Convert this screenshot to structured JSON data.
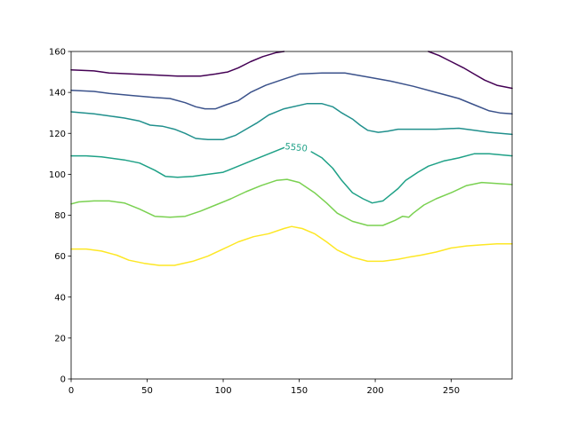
{
  "chart_data": {
    "type": "contour",
    "title": "",
    "xlabel": "",
    "ylabel": "",
    "xlim": [
      0,
      290
    ],
    "ylim": [
      0,
      160
    ],
    "xticks": [
      0,
      50,
      100,
      150,
      200,
      250
    ],
    "yticks": [
      0,
      20,
      40,
      60,
      80,
      100,
      120,
      140,
      160
    ],
    "grid": false,
    "legend": "none",
    "clabels": [
      {
        "text": "5550",
        "x": 148,
        "y": 113,
        "color": "#1fa187"
      }
    ],
    "levels": [
      {
        "color": "#440154",
        "points": [
          [
            0,
            151
          ],
          [
            15,
            150.5
          ],
          [
            25,
            149.5
          ],
          [
            40,
            149
          ],
          [
            55,
            148.5
          ],
          [
            70,
            148
          ],
          [
            85,
            148
          ],
          [
            95,
            149
          ],
          [
            103,
            150
          ],
          [
            110,
            152
          ],
          [
            118,
            155
          ],
          [
            126,
            157.5
          ],
          [
            135,
            159.5
          ],
          [
            140,
            160
          ]
        ]
      },
      {
        "color": "#440154",
        "points": [
          [
            235,
            160
          ],
          [
            242,
            158
          ],
          [
            250,
            155
          ],
          [
            258,
            152
          ],
          [
            265,
            149
          ],
          [
            272,
            146
          ],
          [
            280,
            143.5
          ],
          [
            290,
            142
          ]
        ]
      },
      {
        "color": "#3b528b",
        "points": [
          [
            0,
            141
          ],
          [
            15,
            140.5
          ],
          [
            25,
            139.5
          ],
          [
            40,
            138.5
          ],
          [
            55,
            137.5
          ],
          [
            65,
            137
          ],
          [
            75,
            135
          ],
          [
            82,
            133
          ],
          [
            88,
            132
          ],
          [
            95,
            132
          ],
          [
            102,
            134
          ],
          [
            110,
            136
          ],
          [
            118,
            140
          ],
          [
            128,
            143.5
          ],
          [
            140,
            146.5
          ],
          [
            150,
            149
          ],
          [
            165,
            149.5
          ],
          [
            180,
            149.5
          ],
          [
            195,
            147.5
          ],
          [
            210,
            145.5
          ],
          [
            225,
            143
          ],
          [
            240,
            140
          ],
          [
            255,
            137
          ],
          [
            265,
            134
          ],
          [
            275,
            131
          ],
          [
            282,
            130
          ],
          [
            290,
            129.5
          ]
        ]
      },
      {
        "color": "#21908d",
        "points": [
          [
            0,
            130.5
          ],
          [
            15,
            129.5
          ],
          [
            25,
            128.5
          ],
          [
            35,
            127.5
          ],
          [
            45,
            126
          ],
          [
            52,
            124
          ],
          [
            60,
            123.5
          ],
          [
            68,
            122
          ],
          [
            75,
            120
          ],
          [
            82,
            117.5
          ],
          [
            90,
            117
          ],
          [
            100,
            117
          ],
          [
            108,
            119
          ],
          [
            115,
            122
          ],
          [
            122,
            125
          ],
          [
            130,
            129
          ],
          [
            140,
            132
          ],
          [
            155,
            134.5
          ],
          [
            165,
            134.5
          ],
          [
            172,
            133
          ],
          [
            178,
            130
          ],
          [
            185,
            127
          ],
          [
            190,
            124
          ],
          [
            195,
            121.5
          ],
          [
            202,
            120.5
          ],
          [
            208,
            121
          ],
          [
            215,
            122
          ],
          [
            225,
            122
          ],
          [
            240,
            122
          ],
          [
            255,
            122.5
          ],
          [
            265,
            121.5
          ],
          [
            275,
            120.5
          ],
          [
            290,
            119.5
          ]
        ]
      },
      {
        "color": "#1fa187",
        "points": [
          [
            0,
            109
          ],
          [
            10,
            109
          ],
          [
            20,
            108.5
          ],
          [
            35,
            107
          ],
          [
            45,
            105.5
          ],
          [
            55,
            102
          ],
          [
            62,
            99
          ],
          [
            70,
            98.5
          ],
          [
            80,
            99
          ],
          [
            90,
            100
          ],
          [
            100,
            101
          ],
          [
            110,
            104
          ],
          [
            120,
            107
          ],
          [
            130,
            110
          ],
          [
            140,
            113
          ]
        ]
      },
      {
        "color": "#1fa187",
        "points": [
          [
            158,
            111
          ],
          [
            165,
            108
          ],
          [
            172,
            103
          ],
          [
            178,
            97
          ],
          [
            185,
            91
          ],
          [
            192,
            88
          ],
          [
            198,
            86
          ],
          [
            205,
            87
          ],
          [
            210,
            90
          ],
          [
            215,
            93
          ],
          [
            220,
            97
          ],
          [
            228,
            101
          ],
          [
            235,
            104
          ],
          [
            245,
            106.5
          ],
          [
            255,
            108
          ],
          [
            265,
            110
          ],
          [
            275,
            110
          ],
          [
            290,
            109
          ]
        ]
      },
      {
        "color": "#7ad151",
        "points": [
          [
            0,
            85.5
          ],
          [
            5,
            86.5
          ],
          [
            15,
            87
          ],
          [
            25,
            87
          ],
          [
            35,
            86
          ],
          [
            45,
            83
          ],
          [
            55,
            79.5
          ],
          [
            65,
            79
          ],
          [
            75,
            79.5
          ],
          [
            85,
            82
          ],
          [
            95,
            85
          ],
          [
            105,
            88
          ],
          [
            115,
            91.5
          ],
          [
            125,
            94.5
          ],
          [
            135,
            97
          ],
          [
            142,
            97.5
          ],
          [
            150,
            96
          ],
          [
            160,
            91
          ],
          [
            168,
            86
          ],
          [
            175,
            81
          ],
          [
            185,
            77
          ],
          [
            195,
            75
          ],
          [
            205,
            75
          ],
          [
            213,
            77.5
          ],
          [
            218,
            79.5
          ],
          [
            222,
            79
          ],
          [
            225,
            81
          ],
          [
            232,
            85
          ],
          [
            240,
            88
          ],
          [
            250,
            91
          ],
          [
            260,
            94.5
          ],
          [
            270,
            96
          ],
          [
            280,
            95.5
          ],
          [
            290,
            95
          ]
        ]
      },
      {
        "color": "#fde725",
        "points": [
          [
            0,
            63.5
          ],
          [
            10,
            63.5
          ],
          [
            20,
            62.5
          ],
          [
            30,
            60.5
          ],
          [
            38,
            58
          ],
          [
            48,
            56.5
          ],
          [
            58,
            55.5
          ],
          [
            68,
            55.5
          ],
          [
            80,
            57.5
          ],
          [
            90,
            60
          ],
          [
            100,
            63.5
          ],
          [
            110,
            67
          ],
          [
            120,
            69.5
          ],
          [
            130,
            71
          ],
          [
            140,
            73.5
          ],
          [
            145,
            74.5
          ],
          [
            152,
            73.5
          ],
          [
            160,
            71
          ],
          [
            168,
            67
          ],
          [
            175,
            63
          ],
          [
            185,
            59.5
          ],
          [
            195,
            57.5
          ],
          [
            205,
            57.5
          ],
          [
            215,
            58.5
          ],
          [
            222,
            59.5
          ],
          [
            230,
            60.5
          ],
          [
            240,
            62
          ],
          [
            250,
            64
          ],
          [
            260,
            65
          ],
          [
            270,
            65.5
          ],
          [
            280,
            66
          ],
          [
            290,
            66
          ]
        ]
      }
    ]
  }
}
